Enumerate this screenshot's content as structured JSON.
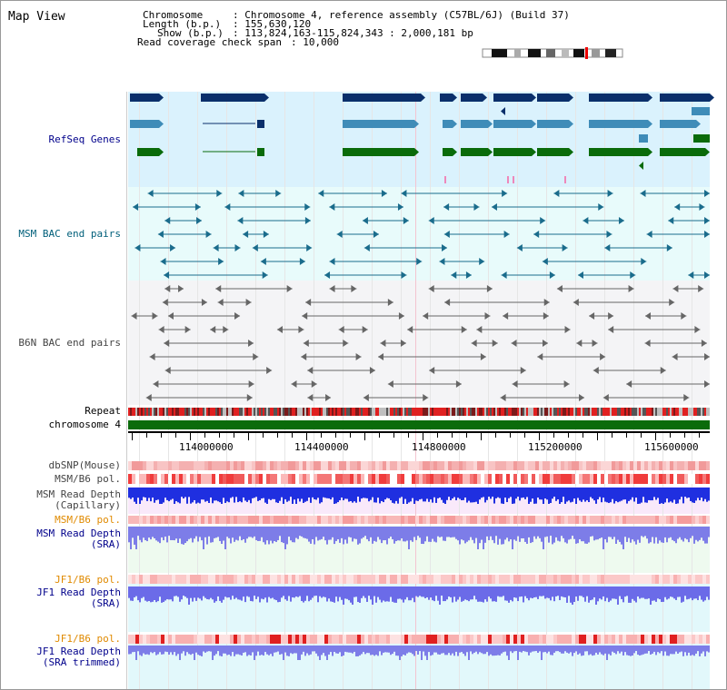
{
  "title": "Map View",
  "header": {
    "chromosome_key": "Chromosome",
    "chromosome_val": ": Chromosome 4, reference assembly (C57BL/6J) (Build 37)",
    "length_key": "Length (b.p.)",
    "length_val": ": 155,630,120",
    "show_key": "Show (b.p.)",
    "show_val": ": 113,824,163-115,824,343 : 2,000,181 bp",
    "span_key": "Read coverage check span",
    "span_val": ": 10,000"
  },
  "tracks": {
    "refseq": "RefSeq Genes",
    "msm_bac": "MSM BAC end pairs",
    "b6n_bac": "B6N BAC end pairs",
    "repeat": "Repeat",
    "chromosome": "chromosome 4",
    "dbsnp": "dbSNP(Mouse)",
    "msm_b6_pol_1": "MSM/B6 pol.",
    "msm_depth_cap_1": "MSM Read Depth",
    "msm_depth_cap_2": "(Capillary)",
    "msm_b6_pol_2": "MSM/B6 pol.",
    "msm_depth_sra_1": "MSM Read Depth",
    "msm_depth_sra_2": "(SRA)",
    "jf1_pol_1": "JF1/B6 pol.",
    "jf1_depth_sra_1": "JF1 Read Depth",
    "jf1_depth_sra_2": "(SRA)",
    "jf1_pol_2": "JF1/B6 pol.",
    "jf1_depth_trim_1": "JF1 Read Depth",
    "jf1_depth_trim_2": "(SRA trimmed)"
  },
  "axis": {
    "ticks": [
      "114000000",
      "114400000",
      "114800000",
      "115200000",
      "115600000"
    ]
  },
  "colors": {
    "refseq_dark": "#0a2f6b",
    "refseq_mid": "#3f8cb8",
    "refseq_green": "#0a6b0a",
    "msm_bac": "#1a6c8c",
    "b6n_bac": "#666666",
    "chromosome": "#0b6b0b",
    "depth_blue": "#1f2fe0",
    "depth_violet": "#7d7de8"
  }
}
